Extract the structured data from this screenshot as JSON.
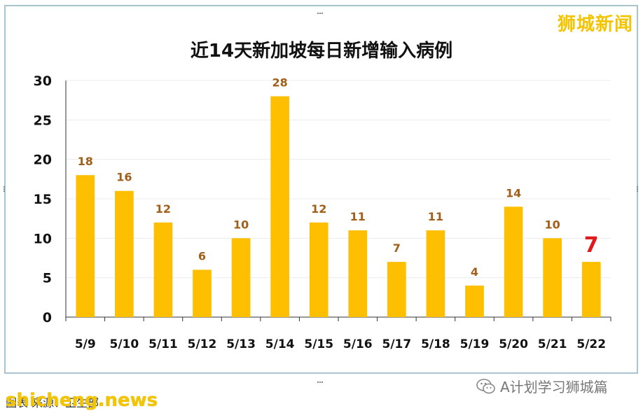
{
  "brand": "狮城新闻",
  "watermark": "shicheng.news",
  "caption_underlay": "图表  来源：卫生部",
  "wechat_account": "A计划学习狮城篇",
  "colors": {
    "bar": "#fdbf00",
    "label": "#a0601a",
    "highlight": "#e11b1b",
    "brand": "#f3c400"
  },
  "chart_data": {
    "type": "bar",
    "title": "近14天新加坡每日新增输入病例",
    "categories": [
      "5/9",
      "5/10",
      "5/11",
      "5/12",
      "5/13",
      "5/14",
      "5/15",
      "5/16",
      "5/17",
      "5/18",
      "5/19",
      "5/20",
      "5/21",
      "5/22"
    ],
    "values": [
      18,
      16,
      12,
      6,
      10,
      28,
      12,
      11,
      7,
      11,
      4,
      14,
      10,
      7
    ],
    "data_labels": [
      "18",
      "16",
      "12",
      "6",
      "10",
      "28",
      "12",
      "11",
      "7",
      "11",
      "4",
      "14",
      "10",
      "7"
    ],
    "highlight_index": 13,
    "ylim": [
      0,
      30
    ],
    "yticks": [
      0,
      5,
      10,
      15,
      20,
      25,
      30
    ],
    "xlabel": "",
    "ylabel": "",
    "grid": true,
    "legend": "none"
  }
}
